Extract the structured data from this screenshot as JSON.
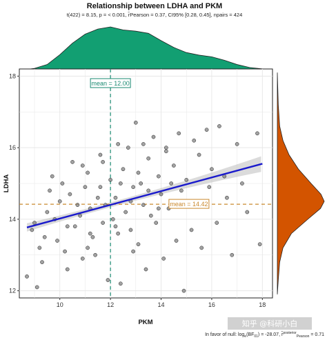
{
  "chart_data": {
    "type": "scatter",
    "title": "Relationship between LDHA and PKM",
    "subtitle": "t(422) = 8.15, p = < 0.001, r̂Pearson = 0.37, CI95% [0.28, 0.45], npairs = 424",
    "xlabel": "PKM",
    "ylabel": "LDHA",
    "xlim": [
      8.4,
      18.4
    ],
    "ylim": [
      11.8,
      18.2
    ],
    "x_ticks": [
      "10",
      "12",
      "14",
      "16",
      "18"
    ],
    "y_ticks": [
      "12",
      "14",
      "16",
      "18"
    ],
    "grid": true,
    "x_mean": 12.0,
    "y_mean": 14.42,
    "x_mean_label": "mean = 12.00",
    "y_mean_label": "mean = 14.42",
    "regression": {
      "x": [
        8.7,
        18.0
      ],
      "y": [
        13.77,
        15.55
      ]
    },
    "colors": {
      "points": "#7a7a7a",
      "regression": "#1a1acc",
      "x_mean_line": "#1a8a72",
      "y_mean_line": "#c9882d",
      "top_density": "#129f72",
      "right_density": "#d35400"
    },
    "x_density": [
      [
        8.6,
        0.0
      ],
      [
        9.0,
        0.03
      ],
      [
        9.5,
        0.12
      ],
      [
        10.0,
        0.35
      ],
      [
        10.5,
        0.62
      ],
      [
        11.0,
        0.83
      ],
      [
        11.5,
        0.95
      ],
      [
        12.0,
        1.0
      ],
      [
        12.5,
        0.93
      ],
      [
        13.0,
        0.9
      ],
      [
        13.5,
        0.85
      ],
      [
        14.0,
        0.68
      ],
      [
        14.5,
        0.52
      ],
      [
        15.0,
        0.4
      ],
      [
        15.5,
        0.34
      ],
      [
        16.0,
        0.3
      ],
      [
        16.5,
        0.22
      ],
      [
        17.0,
        0.12
      ],
      [
        17.5,
        0.05
      ],
      [
        18.3,
        0.0
      ]
    ],
    "y_density": [
      [
        11.9,
        0.0
      ],
      [
        12.3,
        0.02
      ],
      [
        12.8,
        0.05
      ],
      [
        13.2,
        0.12
      ],
      [
        13.6,
        0.3
      ],
      [
        14.0,
        0.65
      ],
      [
        14.3,
        0.92
      ],
      [
        14.5,
        1.0
      ],
      [
        14.7,
        0.93
      ],
      [
        15.0,
        0.72
      ],
      [
        15.4,
        0.45
      ],
      [
        15.8,
        0.25
      ],
      [
        16.2,
        0.12
      ],
      [
        16.6,
        0.05
      ],
      [
        17.2,
        0.02
      ],
      [
        18.1,
        0.0
      ]
    ],
    "points": [
      [
        8.7,
        12.4
      ],
      [
        8.9,
        13.7
      ],
      [
        9.0,
        13.9
      ],
      [
        9.2,
        13.2
      ],
      [
        9.1,
        12.1
      ],
      [
        9.3,
        12.8
      ],
      [
        9.5,
        14.2
      ],
      [
        9.6,
        14.8
      ],
      [
        9.8,
        14.0
      ],
      [
        9.9,
        13.4
      ],
      [
        10.0,
        14.5
      ],
      [
        10.1,
        15.0
      ],
      [
        10.2,
        13.1
      ],
      [
        10.3,
        12.6
      ],
      [
        10.4,
        14.7
      ],
      [
        10.5,
        15.6
      ],
      [
        10.6,
        13.8
      ],
      [
        10.8,
        14.1
      ],
      [
        10.9,
        12.9
      ],
      [
        11.0,
        14.9
      ],
      [
        11.1,
        15.3
      ],
      [
        11.2,
        14.3
      ],
      [
        11.3,
        13.5
      ],
      [
        11.4,
        13.0
      ],
      [
        11.5,
        14.6
      ],
      [
        11.6,
        15.8
      ],
      [
        11.7,
        13.9
      ],
      [
        11.8,
        14.4
      ],
      [
        11.9,
        12.3
      ],
      [
        12.0,
        15.1
      ],
      [
        12.1,
        14.0
      ],
      [
        12.2,
        14.6
      ],
      [
        12.3,
        13.6
      ],
      [
        12.4,
        12.2
      ],
      [
        12.5,
        15.4
      ],
      [
        12.6,
        14.2
      ],
      [
        12.7,
        16.0
      ],
      [
        12.8,
        13.7
      ],
      [
        12.9,
        14.9
      ],
      [
        13.0,
        16.7
      ],
      [
        13.1,
        13.3
      ],
      [
        13.2,
        15.0
      ],
      [
        13.3,
        14.4
      ],
      [
        13.4,
        12.6
      ],
      [
        13.5,
        15.7
      ],
      [
        13.6,
        14.1
      ],
      [
        13.7,
        16.3
      ],
      [
        13.8,
        13.9
      ],
      [
        13.9,
        15.2
      ],
      [
        14.0,
        14.7
      ],
      [
        14.1,
        12.9
      ],
      [
        14.2,
        15.9
      ],
      [
        14.3,
        14.3
      ],
      [
        14.5,
        15.5
      ],
      [
        14.6,
        13.4
      ],
      [
        14.7,
        16.4
      ],
      [
        14.8,
        14.8
      ],
      [
        14.9,
        12.0
      ],
      [
        15.0,
        15.1
      ],
      [
        15.2,
        13.7
      ],
      [
        15.3,
        16.2
      ],
      [
        15.4,
        14.5
      ],
      [
        15.5,
        15.8
      ],
      [
        15.6,
        13.2
      ],
      [
        15.8,
        16.5
      ],
      [
        15.9,
        14.9
      ],
      [
        16.0,
        15.4
      ],
      [
        16.2,
        13.9
      ],
      [
        16.3,
        16.6
      ],
      [
        16.5,
        15.2
      ],
      [
        16.6,
        14.6
      ],
      [
        16.8,
        13.0
      ],
      [
        17.0,
        16.1
      ],
      [
        17.2,
        15.0
      ],
      [
        17.4,
        14.2
      ],
      [
        17.8,
        16.4
      ],
      [
        17.9,
        13.3
      ],
      [
        10.7,
        14.4
      ],
      [
        11.2,
        13.6
      ],
      [
        11.6,
        14.9
      ],
      [
        12.2,
        13.8
      ],
      [
        12.4,
        15.0
      ],
      [
        12.8,
        14.5
      ],
      [
        13.1,
        15.3
      ],
      [
        13.5,
        14.8
      ],
      [
        13.9,
        14.3
      ],
      [
        14.4,
        15.0
      ],
      [
        10.9,
        15.5
      ],
      [
        11.7,
        15.6
      ],
      [
        12.3,
        16.1
      ],
      [
        13.3,
        16.1
      ],
      [
        14.2,
        16.0
      ],
      [
        10.3,
        13.8
      ],
      [
        11.1,
        13.2
      ],
      [
        12.9,
        13.1
      ],
      [
        9.7,
        15.2
      ],
      [
        9.4,
        13.5
      ]
    ]
  },
  "watermark": "知乎 @科研小白"
}
